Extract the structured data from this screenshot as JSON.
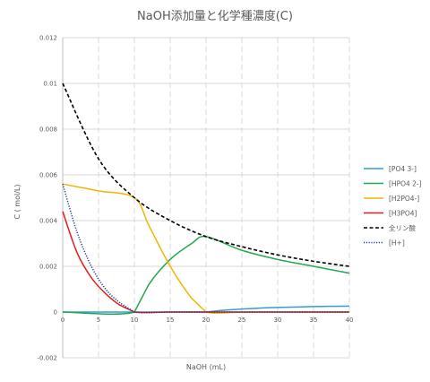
{
  "chart_data": {
    "type": "line",
    "title": "NaOH添加量と化学種濃度(C)",
    "xlabel": "NaOH (mL)",
    "ylabel": "C ( mol/L)",
    "xlim": [
      0,
      40
    ],
    "ylim": [
      -0.002,
      0.012
    ],
    "xticks": [
      0,
      5,
      10,
      15,
      20,
      25,
      30,
      35,
      40
    ],
    "xtick_labels": [
      "0",
      "5",
      "10",
      "15",
      "20",
      "25",
      "30",
      "35",
      "40"
    ],
    "yticks": [
      -0.002,
      0,
      0.002,
      0.004,
      0.006,
      0.008,
      0.01,
      0.012
    ],
    "ytick_labels": [
      "-0.002",
      "0",
      "0.002",
      "0.004",
      "0.006",
      "0.008",
      "0.01",
      "0.012"
    ],
    "grid": {
      "horizontal": true,
      "vertical": "dashed"
    },
    "legend_position": "right",
    "series": [
      {
        "name": "[PO4 3-]",
        "color": "#2E9FD8",
        "dash": "solid",
        "x": [
          0,
          10,
          20,
          22,
          25,
          28,
          30,
          35,
          40
        ],
        "y": [
          0,
          0,
          0,
          7e-05,
          0.00013,
          0.00018,
          0.0002,
          0.00024,
          0.00026
        ]
      },
      {
        "name": "[HPO4 2-]",
        "color": "#22A94F",
        "dash": "solid",
        "x": [
          0,
          10,
          12,
          15,
          18,
          20,
          25,
          30,
          35,
          40
        ],
        "y": [
          0,
          0,
          0.0012,
          0.0023,
          0.003,
          0.0033,
          0.0027,
          0.0023,
          0.002,
          0.0017
        ]
      },
      {
        "name": "[H2PO4-]",
        "color": "#F2B400",
        "dash": "solid",
        "x": [
          0,
          5,
          10,
          12,
          15,
          18,
          20,
          25,
          30,
          35,
          40
        ],
        "y": [
          0.0056,
          0.0053,
          0.005,
          0.0038,
          0.002,
          0.0006,
          0,
          0,
          0,
          0,
          0
        ]
      },
      {
        "name": "[H3PO4]",
        "color": "#E31C1C",
        "dash": "solid",
        "x": [
          0,
          2,
          4,
          6,
          8,
          10,
          15,
          20,
          25,
          30,
          35,
          40
        ],
        "y": [
          0.0044,
          0.0026,
          0.0015,
          0.0008,
          0.0003,
          0,
          0,
          0,
          0,
          0,
          0,
          0
        ]
      },
      {
        "name": "全リン酸",
        "color": "#000000",
        "dash": "dashed",
        "x": [
          0,
          5,
          10,
          15,
          20,
          25,
          30,
          35,
          40
        ],
        "y": [
          0.01,
          0.0067,
          0.005,
          0.004,
          0.0033,
          0.00286,
          0.0025,
          0.00222,
          0.002
        ]
      },
      {
        "name": "[H+]",
        "color": "#1F3A93",
        "dash": "dotted",
        "x": [
          0,
          2,
          4,
          6,
          8,
          10,
          15,
          20,
          25,
          30,
          35,
          40
        ],
        "y": [
          0.0056,
          0.0035,
          0.002,
          0.001,
          0.0004,
          0,
          0,
          0,
          0,
          0,
          0,
          0
        ]
      }
    ]
  }
}
